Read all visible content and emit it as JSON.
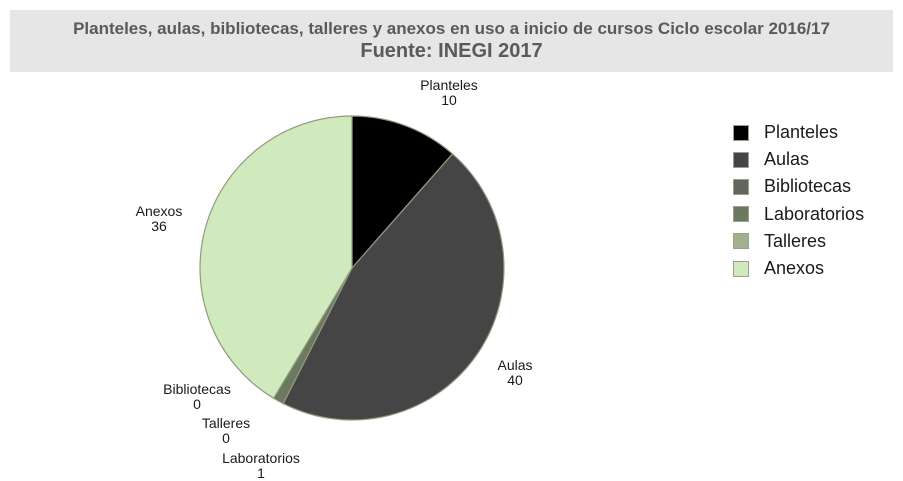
{
  "header": {
    "title": "Planteles, aulas, bibliotecas, talleres y anexos en uso a inicio de cursos Ciclo escolar 2016/17",
    "subtitle": "Fuente: INEGI 2017"
  },
  "chart_data": {
    "type": "pie",
    "title": "Planteles, aulas, bibliotecas, talleres y anexos en uso a inicio de cursos Ciclo escolar 2016/17",
    "subtitle": "Fuente: INEGI 2017",
    "categories": [
      "Planteles",
      "Aulas",
      "Bibliotecas",
      "Laboratorios",
      "Talleres",
      "Anexos"
    ],
    "values": [
      10,
      40,
      0,
      1,
      0,
      36
    ],
    "colors": [
      "#000000",
      "#454545",
      "#5f675a",
      "#6b7a5f",
      "#a1b08f",
      "#d0eabe"
    ],
    "slice_labels": [
      {
        "name": "Planteles",
        "value": "10"
      },
      {
        "name": "Aulas",
        "value": "40"
      },
      {
        "name": "Bibliotecas",
        "value": "0"
      },
      {
        "name": "Laboratorios",
        "value": "1"
      },
      {
        "name": "Talleres",
        "value": "0"
      },
      {
        "name": "Anexos",
        "value": "36"
      }
    ],
    "legend_position": "right",
    "start_angle": "top",
    "direction": "clockwise"
  }
}
